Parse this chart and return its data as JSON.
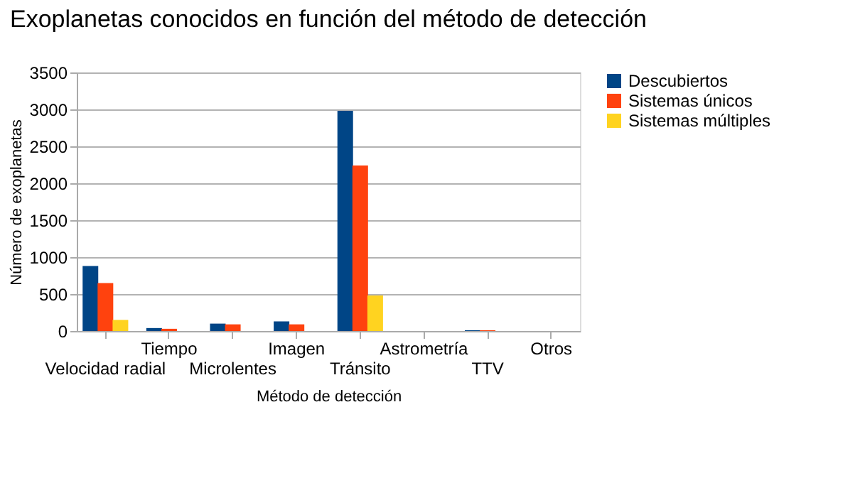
{
  "chart_data": {
    "type": "bar",
    "title": "Exoplanetas conocidos en función del método de detección",
    "xlabel": "Método de detección",
    "ylabel": "Número de exoplanetas",
    "categories": [
      "Velocidad radial",
      "Tiempo",
      "Microlentes",
      "Imagen",
      "Tránsito",
      "Astrometría",
      "TTV",
      "Otros"
    ],
    "series": [
      {
        "name": "Descubiertos",
        "color": "#004586",
        "values": [
          880,
          40,
          100,
          130,
          2980,
          0,
          10,
          0
        ]
      },
      {
        "name": "Sistemas únicos",
        "color": "#ff420e",
        "values": [
          650,
          30,
          90,
          90,
          2240,
          0,
          10,
          0
        ]
      },
      {
        "name": "Sistemas múltiples",
        "color": "#ffd320",
        "values": [
          150,
          0,
          0,
          0,
          480,
          0,
          0,
          0
        ]
      }
    ],
    "ylim": [
      0,
      3500
    ],
    "yticks": [
      0,
      500,
      1000,
      1500,
      2000,
      2500,
      3000,
      3500
    ],
    "grid": "y",
    "legend": "right"
  }
}
